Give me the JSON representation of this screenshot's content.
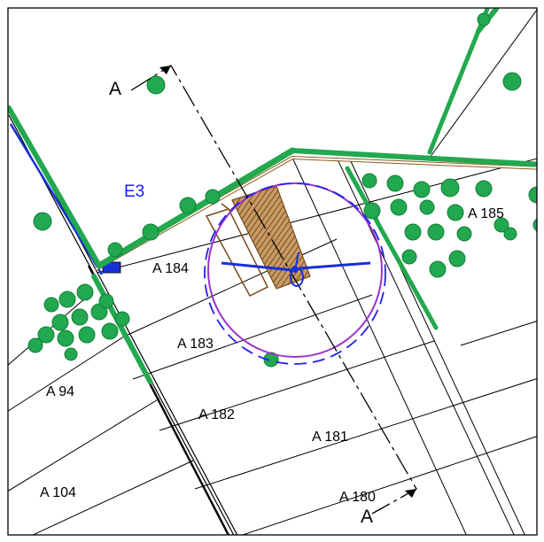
{
  "colors": {
    "background": "#ffffff",
    "frame": "#000000",
    "parcel_line": "#000000",
    "vegetation": "#22a84e",
    "vegetation_dark": "#12803a",
    "road_edge": "#8b5a1c",
    "road_dots": "#8899aa",
    "hatch": "#9b6a36",
    "turbine": "#1530d8",
    "circle_outer": "#9a33cc",
    "circle_dashed": "#2222ee",
    "zone_label": "#1a1aff"
  },
  "icons": {
    "tree": "tree-canopy-icon",
    "turbine": "wind-turbine-icon",
    "arrow": "section-arrow-icon"
  },
  "zone": {
    "label": "E3"
  },
  "section": {
    "start_label": "A",
    "end_label": "A"
  },
  "parcels": [
    {
      "id": "a184",
      "label": "A 184"
    },
    {
      "id": "a183",
      "label": "A 183"
    },
    {
      "id": "a182",
      "label": "A 182"
    },
    {
      "id": "a181",
      "label": "A 181"
    },
    {
      "id": "a180",
      "label": "A 180"
    },
    {
      "id": "a185",
      "label": "A 185"
    },
    {
      "id": "a94",
      "label": "A 94"
    },
    {
      "id": "a104",
      "label": "A 104"
    }
  ]
}
